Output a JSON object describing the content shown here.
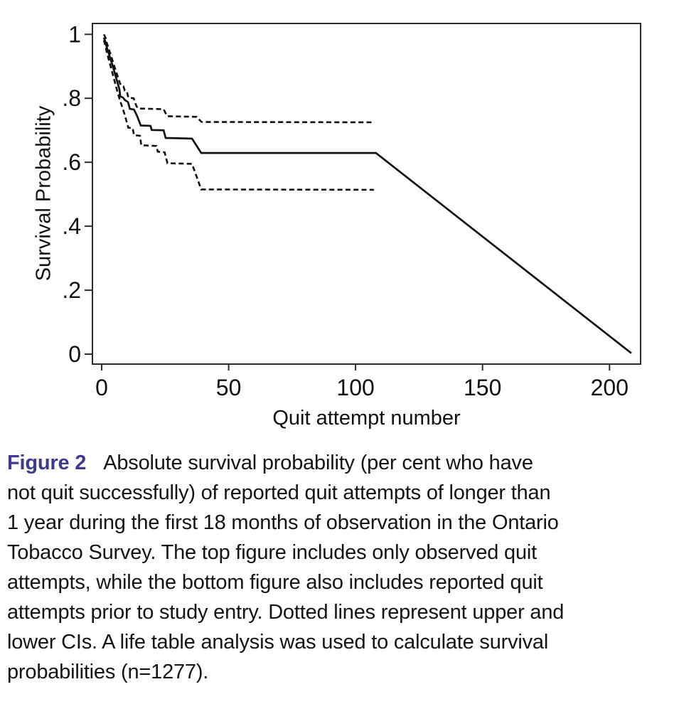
{
  "figure": {
    "caption_label": "Figure 2",
    "caption_label_color": "#3d3a90",
    "caption_lines": [
      "Absolute survival probability (per cent who have",
      "not quit successfully) of reported quit attempts of longer than",
      "1 year during the first 18 months of observation in the Ontario",
      "Tobacco Survey. The top figure includes only observed quit",
      "attempts, while the bottom figure also includes reported quit",
      "attempts prior to study entry. Dotted lines represent upper and",
      "lower CIs. A life table analysis was used to calculate survival",
      "probabilities (n=1277)."
    ]
  },
  "chart_data": {
    "type": "line",
    "title": "",
    "xlabel": "Quit attempt number",
    "ylabel": "Survival Probability",
    "xlim": [
      0,
      212
    ],
    "ylim": [
      0,
      1
    ],
    "grid": false,
    "legend": "none",
    "line_color": "#111111",
    "frame_color": "#2b2b2b",
    "xticks": [
      0,
      50,
      100,
      150,
      200
    ],
    "yticks": [
      {
        "v": 1,
        "label": "1"
      },
      {
        "v": 0.8,
        "label": ".8"
      },
      {
        "v": 0.6,
        "label": ".6"
      },
      {
        "v": 0.4,
        "label": ".4"
      },
      {
        "v": 0.2,
        "label": ".2"
      },
      {
        "v": 0,
        "label": "0"
      }
    ],
    "series": [
      {
        "id": "survival-estimate",
        "name": "Survival probability (life table estimate)",
        "style": "solid",
        "points": [
          [
            0.9,
            0.99
          ],
          [
            1.5,
            0.975
          ],
          [
            2,
            0.96
          ],
          [
            3,
            0.935
          ],
          [
            4,
            0.91
          ],
          [
            5,
            0.883
          ],
          [
            6,
            0.856
          ],
          [
            7,
            0.828
          ],
          [
            7.3,
            0.806
          ],
          [
            8.4,
            0.802
          ],
          [
            9.2,
            0.794
          ],
          [
            10.4,
            0.788
          ],
          [
            11.1,
            0.767
          ],
          [
            12.7,
            0.765
          ],
          [
            13.9,
            0.746
          ],
          [
            15.4,
            0.715
          ],
          [
            19.2,
            0.714
          ],
          [
            19.7,
            0.701
          ],
          [
            24.4,
            0.7
          ],
          [
            25.2,
            0.676
          ],
          [
            35.6,
            0.674
          ],
          [
            39.2,
            0.629
          ],
          [
            108,
            0.629
          ],
          [
            208.6,
            0.003
          ]
        ]
      },
      {
        "id": "upper-ci",
        "name": "Upper CI",
        "style": "dashed",
        "points": [
          [
            0.9,
            1.0
          ],
          [
            1.6,
            0.988
          ],
          [
            2,
            0.974
          ],
          [
            3,
            0.95
          ],
          [
            4,
            0.925
          ],
          [
            5,
            0.9
          ],
          [
            6,
            0.876
          ],
          [
            7,
            0.852
          ],
          [
            7.6,
            0.84
          ],
          [
            8.6,
            0.837
          ],
          [
            9.1,
            0.824
          ],
          [
            9.9,
            0.822
          ],
          [
            10.5,
            0.802
          ],
          [
            12.6,
            0.8
          ],
          [
            13.6,
            0.777
          ],
          [
            14.3,
            0.768
          ],
          [
            24.4,
            0.766
          ],
          [
            25.8,
            0.744
          ],
          [
            37.4,
            0.742
          ],
          [
            39.3,
            0.726
          ],
          [
            107.5,
            0.725
          ]
        ]
      },
      {
        "id": "lower-ci",
        "name": "Lower CI",
        "style": "dashed",
        "points": [
          [
            0.9,
            0.982
          ],
          [
            1.6,
            0.96
          ],
          [
            2,
            0.944
          ],
          [
            3,
            0.915
          ],
          [
            4,
            0.886
          ],
          [
            5,
            0.856
          ],
          [
            6,
            0.827
          ],
          [
            7,
            0.799
          ],
          [
            8,
            0.775
          ],
          [
            9,
            0.751
          ],
          [
            10,
            0.722
          ],
          [
            10.5,
            0.708
          ],
          [
            12.2,
            0.707
          ],
          [
            12.7,
            0.685
          ],
          [
            15.1,
            0.683
          ],
          [
            15.6,
            0.653
          ],
          [
            21.6,
            0.651
          ],
          [
            22.1,
            0.633
          ],
          [
            24.8,
            0.631
          ],
          [
            25.9,
            0.597
          ],
          [
            35.6,
            0.595
          ],
          [
            39.2,
            0.515
          ],
          [
            107.2,
            0.514
          ]
        ]
      }
    ]
  }
}
